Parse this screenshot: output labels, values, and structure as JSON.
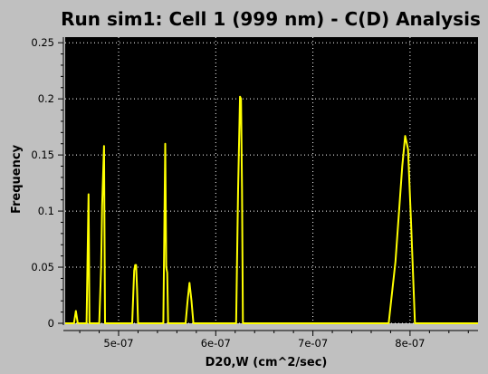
{
  "chart_data": {
    "type": "line",
    "title": "Run sim1: Cell 1 (999 nm) - C(D) Analysis",
    "xlabel": "D20,W (cm^2/sec)",
    "ylabel": "Frequency",
    "xlim": [
      4.45e-07,
      8.7e-07
    ],
    "ylim": [
      0,
      0.255
    ],
    "xticks": [
      5e-07,
      6e-07,
      7e-07,
      8e-07
    ],
    "xtick_labels": [
      "5e-07",
      "6e-07",
      "7e-07",
      "8e-07"
    ],
    "yticks": [
      0,
      0.05,
      0.1,
      0.15,
      0.2,
      0.25
    ],
    "ytick_labels": [
      "0",
      "0.05",
      "0.1",
      "0.15",
      "0.2",
      "0.25"
    ],
    "grid": true,
    "colors": {
      "background": "#000000",
      "line": "#ffff00",
      "grid": "#ffffff",
      "frame": "#c0c0c0"
    },
    "series": [
      {
        "x": [
          4.45e-07,
          4.54e-07,
          4.56e-07,
          4.58e-07,
          4.6e-07,
          4.67e-07,
          4.69e-07,
          4.7e-07,
          4.72e-07,
          4.8e-07,
          4.82e-07,
          4.83e-07,
          4.85e-07,
          4.86e-07,
          4.87e-07,
          5.14e-07,
          5.16e-07,
          5.17e-07,
          5.18e-07,
          5.19e-07,
          5.2e-07,
          5.46e-07,
          5.48e-07,
          5.49e-07,
          5.5e-07,
          5.51e-07,
          5.53e-07,
          5.69e-07,
          5.71e-07,
          5.73e-07,
          5.75e-07,
          5.77e-07,
          6.21e-07,
          6.23e-07,
          6.25e-07,
          6.26e-07,
          6.27e-07,
          6.28e-07,
          6.3e-07,
          7.78e-07,
          7.85e-07,
          7.92e-07,
          7.95e-07,
          7.98e-07,
          8.01e-07,
          8.05e-07,
          8.7e-07
        ],
        "y": [
          0,
          0,
          0.011,
          0,
          0,
          0,
          0.115,
          0,
          0,
          0,
          0.05,
          0.105,
          0.158,
          0,
          0,
          0,
          0.047,
          0.052,
          0.052,
          0.03,
          0,
          0,
          0.16,
          0.05,
          0.045,
          0,
          0,
          0,
          0.02,
          0.036,
          0.02,
          0,
          0,
          0.12,
          0.202,
          0.2,
          0.12,
          0,
          0,
          0,
          0.055,
          0.14,
          0.167,
          0.155,
          0.09,
          0,
          0
        ]
      }
    ]
  }
}
